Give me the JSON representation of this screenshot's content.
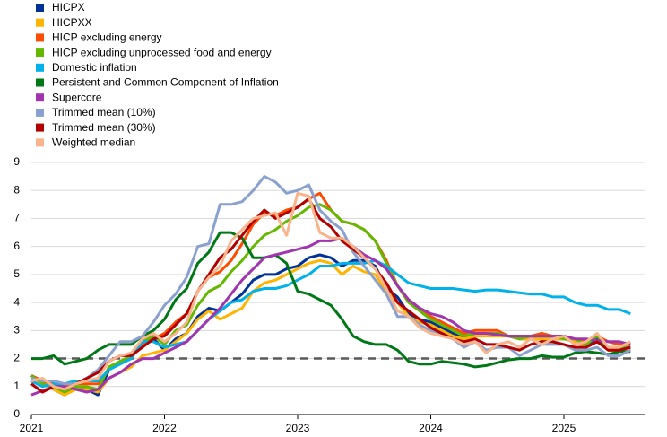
{
  "chart_data": {
    "type": "line",
    "categories": [
      "2021",
      null,
      null,
      null,
      null,
      null,
      null,
      null,
      null,
      null,
      null,
      null,
      "2022",
      null,
      null,
      null,
      null,
      null,
      null,
      null,
      null,
      null,
      null,
      null,
      "2023",
      null,
      null,
      null,
      null,
      null,
      null,
      null,
      null,
      null,
      null,
      null,
      "2024",
      null,
      null,
      null,
      null,
      null,
      null,
      null,
      null,
      null,
      null,
      null,
      "2025",
      null,
      null,
      null,
      null,
      null,
      null
    ],
    "ylim": [
      0,
      9
    ],
    "yticks": [
      0,
      1,
      2,
      3,
      4,
      5,
      6,
      7,
      8,
      9
    ],
    "grid": true,
    "legend": "upper-left",
    "hline": 2,
    "series": [
      {
        "name": "HICPX",
        "color": "#003299",
        "values": [
          1.4,
          1.1,
          0.9,
          0.7,
          1.0,
          0.9,
          0.7,
          1.6,
          1.9,
          2.0,
          2.6,
          2.7,
          2.3,
          2.7,
          2.9,
          3.5,
          3.8,
          3.7,
          4.0,
          4.3,
          4.8,
          5.0,
          5.0,
          5.2,
          5.3,
          5.6,
          5.7,
          5.6,
          5.3,
          5.5,
          5.5,
          5.3,
          4.5,
          4.2,
          3.6,
          3.4,
          3.3,
          3.1,
          2.9,
          2.7,
          2.9,
          2.9,
          2.9,
          2.8,
          2.7,
          2.7,
          2.7,
          2.7,
          2.7,
          2.6,
          2.4,
          2.7,
          2.3,
          2.3,
          2.3
        ]
      },
      {
        "name": "HICPXX",
        "color": "#ffb400",
        "values": [
          1.2,
          1.1,
          0.9,
          0.7,
          0.9,
          0.9,
          0.8,
          1.3,
          1.5,
          1.7,
          2.1,
          2.2,
          2.3,
          2.6,
          2.9,
          3.4,
          3.7,
          3.4,
          3.6,
          3.8,
          4.4,
          4.7,
          4.8,
          5.0,
          5.2,
          5.4,
          5.5,
          5.4,
          5.0,
          5.3,
          5.1,
          5.0,
          4.4,
          4.0,
          3.5,
          3.3,
          3.2,
          3.0,
          2.8,
          2.7,
          2.8,
          2.8,
          2.8,
          2.8,
          2.7,
          2.7,
          2.7,
          2.7,
          2.7,
          2.6,
          2.4,
          2.6,
          2.3,
          2.3,
          2.3
        ]
      },
      {
        "name": "HICP excluding energy",
        "color": "#ff4b00",
        "values": [
          1.4,
          1.2,
          1.1,
          1.0,
          1.1,
          1.1,
          1.1,
          1.6,
          1.9,
          2.1,
          2.5,
          2.7,
          2.9,
          3.3,
          3.6,
          4.4,
          4.9,
          5.1,
          5.5,
          6.1,
          6.8,
          7.2,
          7.1,
          7.3,
          7.4,
          7.7,
          7.9,
          7.3,
          6.9,
          6.8,
          6.6,
          6.2,
          5.5,
          4.6,
          4.1,
          3.8,
          3.5,
          3.3,
          3.1,
          2.9,
          3.0,
          3.0,
          3.0,
          2.8,
          2.8,
          2.8,
          2.9,
          2.8,
          2.8,
          2.7,
          2.6,
          2.8,
          2.6,
          2.5,
          2.5
        ]
      },
      {
        "name": "HICP excluding unprocessed food and energy",
        "color": "#65b800",
        "values": [
          1.4,
          1.1,
          1.0,
          0.8,
          1.0,
          1.0,
          0.9,
          1.7,
          1.9,
          2.1,
          2.6,
          2.8,
          2.5,
          3.0,
          3.2,
          3.9,
          4.4,
          4.6,
          5.1,
          5.5,
          6.0,
          6.4,
          6.6,
          6.9,
          7.1,
          7.4,
          7.5,
          7.3,
          6.9,
          6.8,
          6.6,
          6.2,
          5.4,
          4.6,
          4.0,
          3.7,
          3.4,
          3.2,
          3.0,
          2.8,
          2.9,
          2.9,
          2.9,
          2.8,
          2.7,
          2.8,
          2.8,
          2.8,
          2.7,
          2.7,
          2.5,
          2.8,
          2.4,
          2.4,
          2.4
        ]
      },
      {
        "name": "Domestic inflation",
        "color": "#00b1ea",
        "values": [
          1.2,
          1.0,
          1.1,
          1.1,
          1.2,
          1.2,
          1.2,
          1.6,
          1.8,
          2.0,
          2.6,
          2.6,
          2.4,
          2.5,
          2.6,
          3.0,
          3.4,
          3.7,
          4.0,
          4.1,
          4.4,
          4.5,
          4.5,
          4.6,
          4.8,
          5.0,
          5.3,
          5.3,
          5.4,
          5.4,
          5.4,
          5.5,
          5.3,
          5.0,
          4.7,
          4.6,
          4.5,
          4.5,
          4.5,
          4.45,
          4.4,
          4.45,
          4.45,
          4.4,
          4.35,
          4.3,
          4.3,
          4.2,
          4.2,
          4.0,
          3.9,
          3.9,
          3.75,
          3.75,
          3.6
        ]
      },
      {
        "name": "Persistent and Common Component of Inflation",
        "color": "#007816",
        "values": [
          2.0,
          2.0,
          2.1,
          1.8,
          1.9,
          2.0,
          2.3,
          2.5,
          2.5,
          2.5,
          2.8,
          3.0,
          3.4,
          4.1,
          4.5,
          5.4,
          5.8,
          6.5,
          6.5,
          6.3,
          5.6,
          5.6,
          5.7,
          5.4,
          4.4,
          4.3,
          4.1,
          3.9,
          3.4,
          2.8,
          2.6,
          2.5,
          2.5,
          2.3,
          1.9,
          1.8,
          1.8,
          1.9,
          1.85,
          1.8,
          1.7,
          1.75,
          1.85,
          1.95,
          2.0,
          2.0,
          2.1,
          2.05,
          2.05,
          2.2,
          2.25,
          2.2,
          2.15,
          2.25,
          2.25
        ]
      },
      {
        "name": "Supercore",
        "color": "#a035af",
        "values": [
          0.7,
          0.85,
          1.0,
          1.0,
          0.9,
          0.8,
          0.9,
          1.3,
          1.5,
          1.8,
          2.0,
          2.0,
          2.2,
          2.4,
          2.6,
          3.0,
          3.4,
          3.8,
          4.3,
          4.8,
          5.2,
          5.6,
          5.7,
          5.8,
          5.9,
          6.0,
          6.2,
          6.2,
          6.3,
          6.0,
          5.7,
          5.5,
          5.2,
          4.6,
          4.1,
          3.8,
          3.6,
          3.5,
          3.3,
          3.0,
          2.9,
          2.9,
          2.85,
          2.8,
          2.8,
          2.8,
          2.8,
          2.8,
          2.8,
          2.7,
          2.7,
          2.65,
          2.6,
          2.6,
          2.5
        ]
      },
      {
        "name": "Trimmed mean (10%)",
        "color": "#8aa1d0",
        "values": [
          1.3,
          1.2,
          1.2,
          1.1,
          1.1,
          1.3,
          1.6,
          2.1,
          2.6,
          2.6,
          2.8,
          3.3,
          3.9,
          4.3,
          4.9,
          6.0,
          6.1,
          7.5,
          7.5,
          7.6,
          8.0,
          8.5,
          8.3,
          7.9,
          8.0,
          8.2,
          7.3,
          6.9,
          6.6,
          5.8,
          5.3,
          4.8,
          4.3,
          3.5,
          3.5,
          3.2,
          3.0,
          2.9,
          2.7,
          2.4,
          2.6,
          2.3,
          2.4,
          2.4,
          2.1,
          2.3,
          2.5,
          2.5,
          2.5,
          2.3,
          2.3,
          2.4,
          2.1,
          2.1,
          2.3
        ]
      },
      {
        "name": "Trimmed mean (30%)",
        "color": "#b20000",
        "values": [
          1.1,
          0.8,
          1.0,
          0.9,
          1.1,
          1.3,
          1.5,
          1.9,
          2.1,
          2.1,
          2.4,
          2.7,
          2.8,
          3.2,
          3.6,
          4.4,
          5.0,
          5.6,
          5.9,
          6.4,
          6.9,
          7.3,
          7.0,
          7.2,
          7.4,
          7.7,
          7.0,
          6.7,
          6.2,
          5.9,
          5.6,
          5.2,
          4.7,
          4.0,
          3.7,
          3.4,
          3.1,
          2.9,
          2.7,
          2.6,
          2.7,
          2.5,
          2.5,
          2.4,
          2.3,
          2.5,
          2.6,
          2.6,
          2.5,
          2.4,
          2.4,
          2.6,
          2.3,
          2.3,
          2.4
        ]
      },
      {
        "name": "Weighted median",
        "color": "#f8b48c",
        "values": [
          1.2,
          1.3,
          1.0,
          0.9,
          1.1,
          1.2,
          1.3,
          1.9,
          2.1,
          2.2,
          2.7,
          2.9,
          2.6,
          2.9,
          3.3,
          4.4,
          4.9,
          5.3,
          6.2,
          6.6,
          7.0,
          7.1,
          7.2,
          6.4,
          7.9,
          7.8,
          6.5,
          6.3,
          6.3,
          6.0,
          5.6,
          5.2,
          4.5,
          3.7,
          3.5,
          3.1,
          2.9,
          2.8,
          2.7,
          2.5,
          2.6,
          2.2,
          2.5,
          2.6,
          2.4,
          2.7,
          2.5,
          2.7,
          2.8,
          2.5,
          2.6,
          2.9,
          2.4,
          2.4,
          2.6
        ]
      }
    ]
  }
}
